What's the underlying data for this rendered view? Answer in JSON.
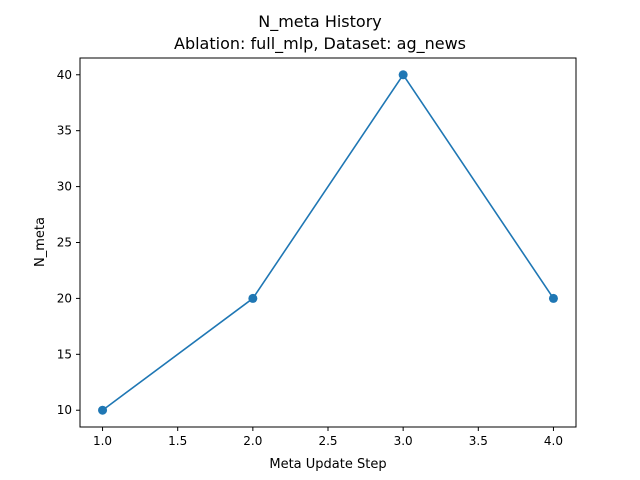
{
  "chart_data": {
    "type": "line",
    "title": "N_meta History",
    "subtitle": "Ablation: full_mlp, Dataset: ag_news",
    "xlabel": "Meta Update Step",
    "ylabel": "N_meta",
    "xlim": [
      0.85,
      4.15
    ],
    "ylim": [
      8.5,
      41.5
    ],
    "xticks": [
      1.0,
      1.5,
      2.0,
      2.5,
      3.0,
      3.5,
      4.0
    ],
    "xtick_labels": [
      "1.0",
      "1.5",
      "2.0",
      "2.5",
      "3.0",
      "3.5",
      "4.0"
    ],
    "yticks": [
      10,
      15,
      20,
      25,
      30,
      35,
      40
    ],
    "ytick_labels": [
      "10",
      "15",
      "20",
      "25",
      "30",
      "35",
      "40"
    ],
    "grid": false,
    "legend": "none",
    "series": [
      {
        "x": [
          1.0,
          2.0,
          3.0,
          4.0
        ],
        "values": [
          10,
          20,
          40,
          20
        ],
        "color": "#1f77b4",
        "marker": "circle"
      }
    ]
  }
}
